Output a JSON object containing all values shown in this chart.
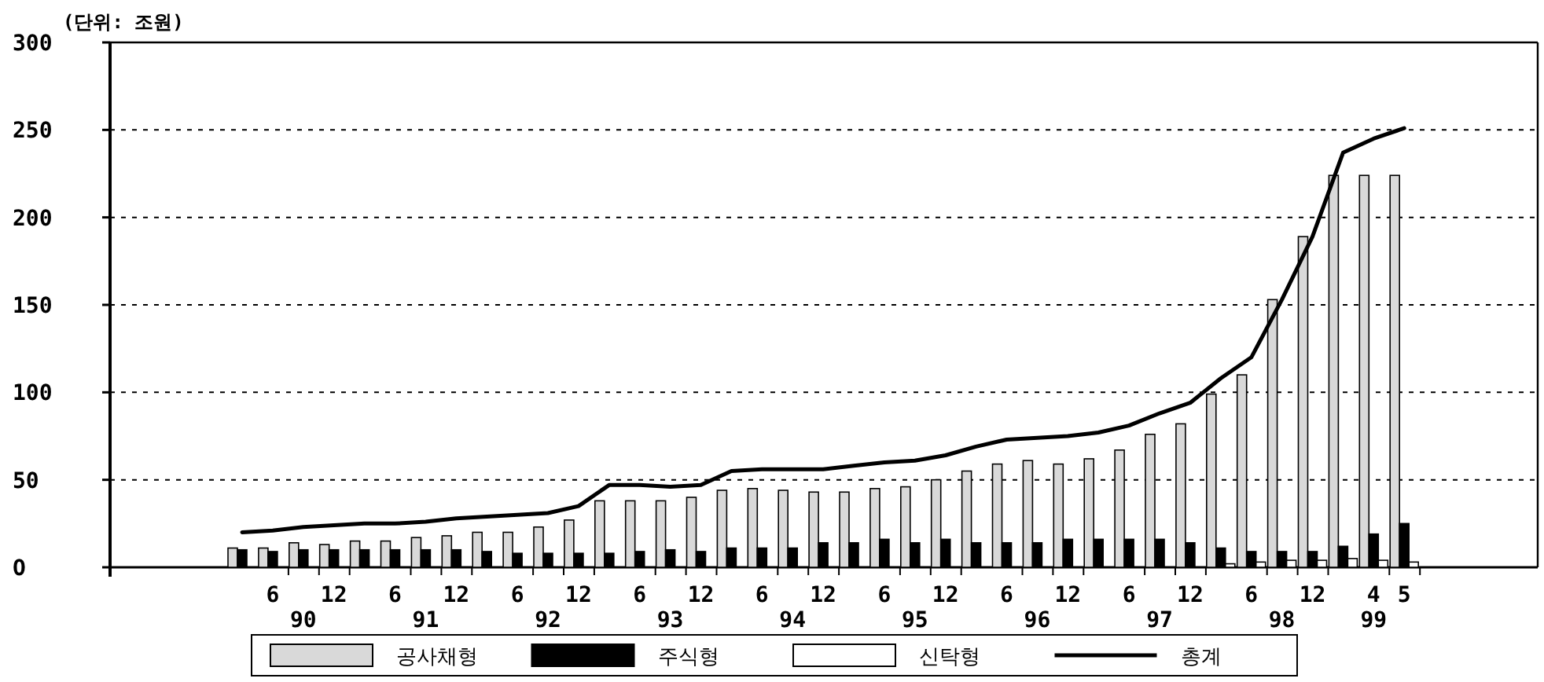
{
  "chart_data": {
    "type": "bar",
    "ylabel": "(단위: 조원)",
    "categories": [
      null,
      "6",
      "\n90",
      "12",
      null,
      "6",
      "\n91",
      "12",
      null,
      "6",
      "\n92",
      "12",
      null,
      "6",
      "\n93",
      "12",
      null,
      "6",
      "\n94",
      "12",
      null,
      "6",
      "\n95",
      "12",
      null,
      "6",
      "\n96",
      "12",
      null,
      "6",
      "\n97",
      "12",
      null,
      "6",
      "\n98",
      "12",
      null,
      "4\n99",
      "5"
    ],
    "series": [
      {
        "name": "공사채형",
        "color": "#d9d9d9",
        "values": [
          11,
          11,
          14,
          13,
          15,
          15,
          17,
          18,
          20,
          20,
          23,
          27,
          38,
          38,
          38,
          40,
          44,
          45,
          44,
          43,
          43,
          45,
          46,
          50,
          55,
          59,
          61,
          59,
          62,
          67,
          76,
          82,
          99,
          110,
          153,
          189,
          224,
          224,
          224
        ]
      },
      {
        "name": "주식형",
        "color": "#000000",
        "values": [
          10,
          9,
          10,
          10,
          10,
          10,
          10,
          10,
          9,
          8,
          8,
          8,
          8,
          9,
          10,
          9,
          11,
          11,
          11,
          14,
          14,
          16,
          14,
          16,
          14,
          14,
          14,
          16,
          16,
          16,
          16,
          14,
          11,
          9,
          9,
          9,
          12,
          19,
          25
        ]
      },
      {
        "name": "신탁형",
        "color": "#ffffff",
        "values": [
          null,
          null,
          null,
          null,
          null,
          null,
          null,
          null,
          null,
          null,
          null,
          null,
          null,
          null,
          null,
          null,
          null,
          null,
          null,
          null,
          null,
          null,
          null,
          null,
          null,
          null,
          null,
          null,
          null,
          null,
          null,
          null,
          2,
          3,
          4,
          4,
          5,
          4,
          3
        ]
      },
      {
        "name": "총계",
        "type": "line",
        "color": "#000000",
        "values": [
          20,
          21,
          23,
          24,
          25,
          25,
          26,
          28,
          29,
          30,
          31,
          35,
          47,
          47,
          46,
          47,
          55,
          56,
          56,
          56,
          58,
          60,
          61,
          64,
          69,
          73,
          74,
          75,
          77,
          81,
          88,
          94,
          108,
          120,
          153,
          189,
          237,
          245,
          251
        ]
      }
    ],
    "ylim": [
      0,
      300
    ],
    "yticks": [
      {
        "value": 0,
        "label": "O"
      },
      50,
      100,
      150,
      200,
      250,
      300
    ],
    "grid": "y",
    "legend": "bottom"
  }
}
